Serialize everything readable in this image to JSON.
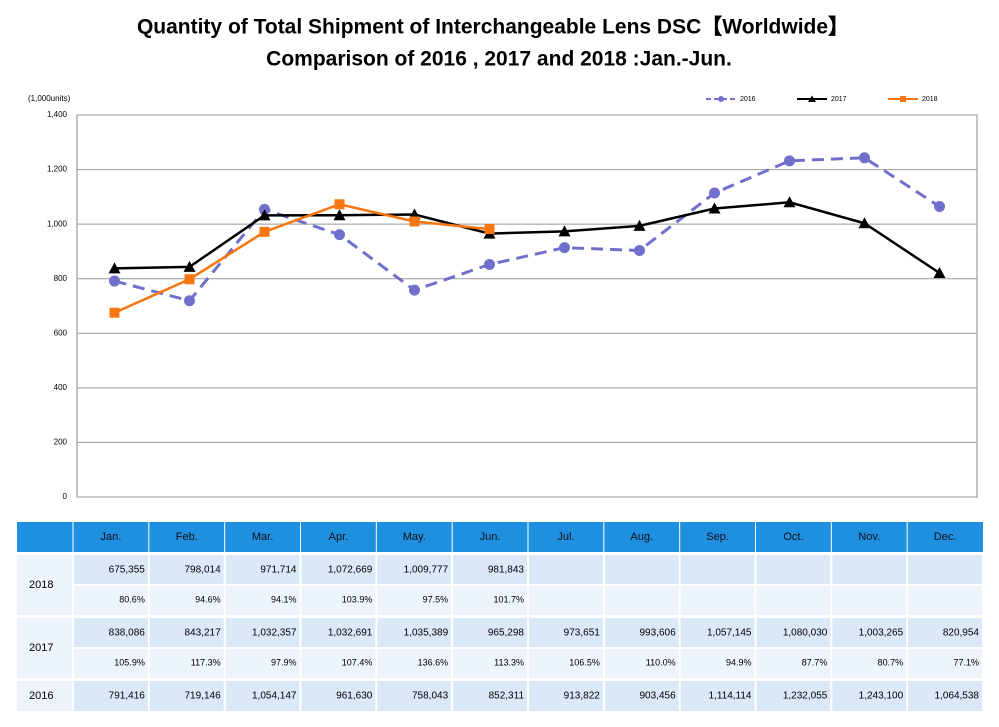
{
  "chart_data": {
    "type": "line",
    "title": "Quantity of Total Shipment of Interchangeable Lens DSC【Worldwide】",
    "subtitle": "Comparison of 2016 , 2017 and 2018 :Jan.-Jun.",
    "y_label": "(1,000units)",
    "categories": [
      "Jan.",
      "Feb.",
      "Mar.",
      "Apr.",
      "May.",
      "Jun.",
      "Jul.",
      "Aug.",
      "Sep.",
      "Oct.",
      "Nov.",
      "Dec."
    ],
    "ylim": [
      0,
      1400
    ],
    "yticks": [
      0,
      200,
      400,
      600,
      800,
      {
        "value": 1000,
        "label": "1,000"
      },
      {
        "value": 1200,
        "label": "1,200"
      },
      {
        "value": 1400,
        "label": "1,400"
      }
    ],
    "grid": true,
    "legend": "top-right",
    "series": [
      {
        "name": "2016",
        "color": "#7070cc",
        "dashed": true,
        "marker": "circle",
        "values": [
          791.416,
          719.146,
          1054.147,
          961.63,
          758.043,
          852.311,
          913.822,
          903.456,
          1114.114,
          1232.055,
          1243.1,
          1064.538
        ],
        "value_labels": [
          "791,416",
          "719,146",
          "1,054,147",
          "961,630",
          "758,043",
          "852,311",
          "913,822",
          "903,456",
          "1,114,114",
          "1,232,055",
          "1,243,100",
          "1,064,538"
        ]
      },
      {
        "name": "2017",
        "color": "#000000",
        "dashed": false,
        "marker": "triangle",
        "values": [
          838.086,
          843.217,
          1032.357,
          1032.691,
          1035.389,
          965.298,
          973.651,
          993.606,
          1057.145,
          1080.03,
          1003.265,
          820.954
        ],
        "value_labels": [
          "838,086",
          "843,217",
          "1,032,357",
          "1,032,691",
          "1,035,389",
          "965,298",
          "973,651",
          "993,606",
          "1,057,145",
          "1,080,030",
          "1,003,265",
          "820,954"
        ],
        "ratio_labels": [
          "105.9%",
          "117.3%",
          "97.9%",
          "107.4%",
          "136.6%",
          "113.3%",
          "106.5%",
          "110.0%",
          "94.9%",
          "87.7%",
          "80.7%",
          "77.1%"
        ]
      },
      {
        "name": "2018",
        "color": "#f7760f",
        "dashed": false,
        "marker": "square",
        "values": [
          675.355,
          798.014,
          971.714,
          1072.669,
          1009.777,
          981.843,
          null,
          null,
          null,
          null,
          null,
          null
        ],
        "value_labels": [
          "675,355",
          "798,014",
          "971,714",
          "1,072,669",
          "1,009,777",
          "981,843",
          null,
          null,
          null,
          null,
          null,
          null
        ],
        "ratio_labels": [
          "80.6%",
          "94.6%",
          "94.1%",
          "103.9%",
          "97.5%",
          "101.7%",
          null,
          null,
          null,
          null,
          null,
          null
        ]
      }
    ]
  }
}
